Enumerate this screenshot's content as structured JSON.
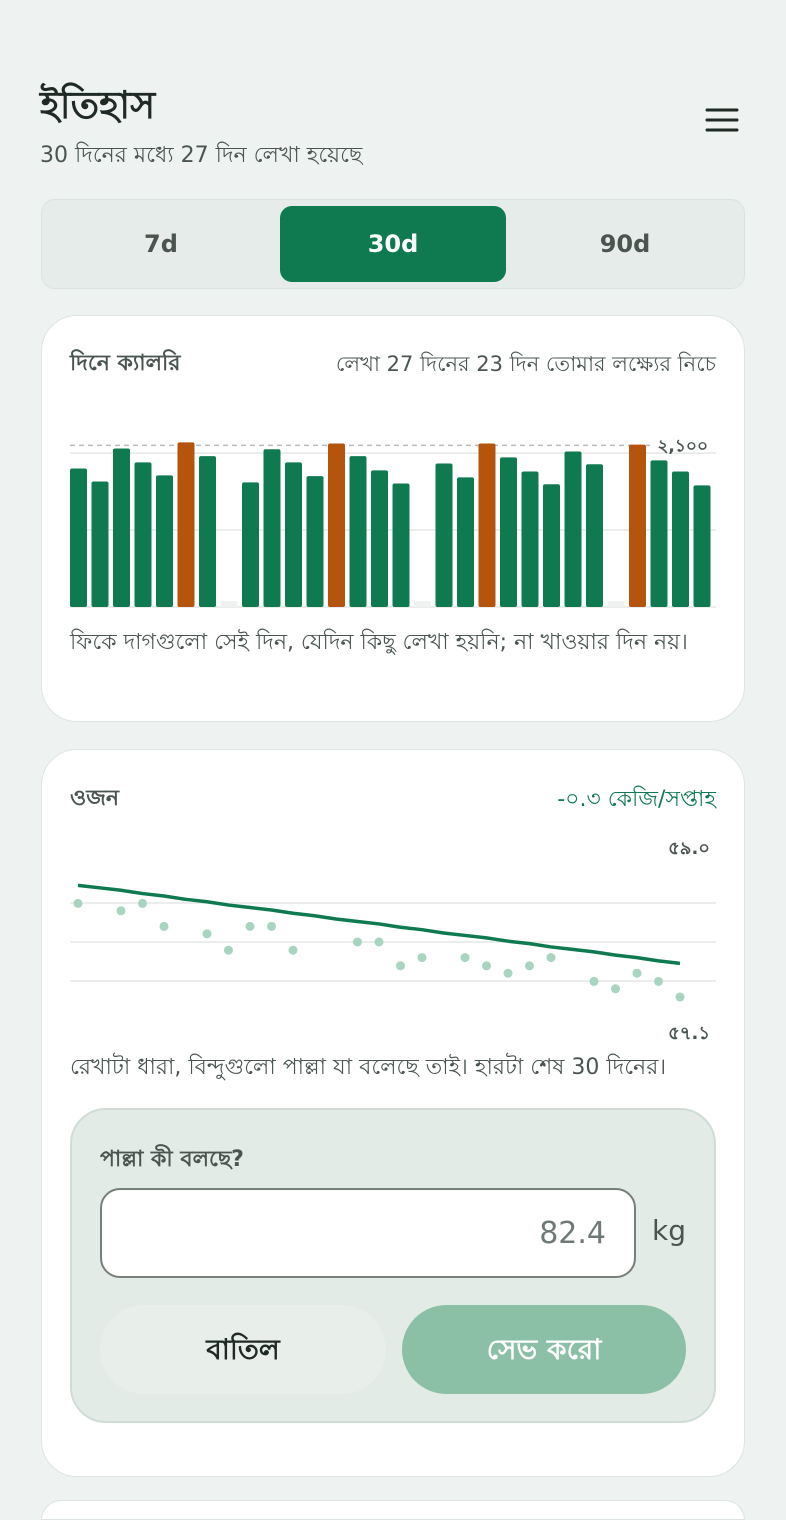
{
  "header": {
    "title": "ইতিহাস",
    "subtitle": "30 দিনের মধ্যে 27 দিন লেখা হয়েছে"
  },
  "tabs": {
    "items": [
      "7d",
      "30d",
      "90d"
    ],
    "selected": 1
  },
  "calorie_card": {
    "title": "দিনে ক্যালরি",
    "summary": "লেখা 27 দিনের 23 দিন তোমার লক্ষ্যের নিচে",
    "chart": {
      "type": "bar",
      "values": [
        1800,
        1630,
        2060,
        1880,
        1710,
        2140,
        1960,
        null,
        1620,
        2050,
        1880,
        1700,
        2125,
        1960,
        1775,
        1605,
        null,
        1865,
        1685,
        2125,
        1945,
        1760,
        1595,
        2020,
        1855,
        null,
        2110,
        1905,
        1760,
        1580
      ],
      "color": "#0f7a50",
      "over_color": "#b5540c",
      "target": {
        "value": 2100,
        "label": "২,১০০"
      },
      "ylim": [
        0,
        2300
      ],
      "yticks": [
        0,
        1000,
        2000
      ],
      "grid": true
    },
    "note": "ফিকে দাগগুলো সেই দিন, যেদিন কিছু লেখা হয়নি; না খাওয়ার দিন নয়।"
  },
  "weight_card": {
    "title": "ওজন",
    "rate": "-০.৩ কেজি/সপ্তাহ",
    "chart": {
      "type": "scatter",
      "points": {
        "color": "#a8d4c0",
        "values": [
          58.52,
          null,
          58.43,
          58.52,
          58.24,
          null,
          58.15,
          57.95,
          58.24,
          58.24,
          57.95,
          null,
          null,
          58.05,
          58.05,
          57.76,
          57.86,
          null,
          57.86,
          57.76,
          57.67,
          57.76,
          57.86,
          null,
          57.57,
          57.48,
          57.67,
          57.57,
          57.38,
          null
        ]
      },
      "trend": {
        "color": "#0f7a50",
        "values": [
          58.74,
          58.71,
          58.68,
          58.64,
          58.61,
          58.57,
          58.54,
          58.5,
          58.47,
          58.44,
          58.4,
          58.37,
          58.33,
          58.3,
          58.27,
          58.23,
          58.2,
          58.16,
          58.13,
          58.1,
          58.06,
          58.03,
          57.99,
          57.96,
          57.93,
          57.89,
          57.86,
          57.82,
          57.79,
          null
        ]
      },
      "ylim": [
        57.1,
        59.0
      ],
      "yticks": [
        {
          "value": 57.1,
          "label": "৫৭.১"
        },
        {
          "value": 59.0,
          "label": "৫৯.০"
        }
      ],
      "gridlines": [
        57.575,
        58.05,
        58.525
      ]
    },
    "note": "রেখাটা ধারা, বিন্দুগুলো পাল্লা যা বলেছে তাই। হারটা শেষ 30 দিনের।",
    "form": {
      "label": "পাল্লা কী বলছে?",
      "placeholder": "82.4",
      "unit": "kg",
      "cancel": "বাতিল",
      "save": "সেভ করো"
    }
  }
}
